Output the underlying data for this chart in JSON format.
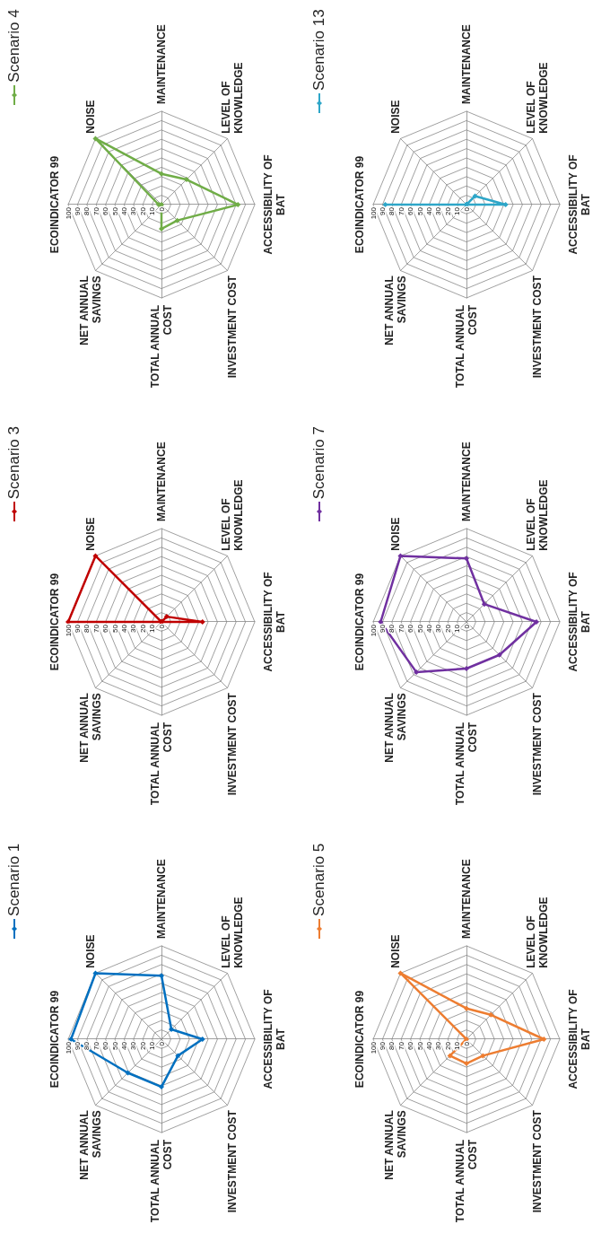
{
  "chart_data": [
    {
      "type": "radar",
      "categories": [
        "ECOINDICATOR 99",
        "NOISE",
        "MAINTENANCE",
        "LEVEL OF KNOWLEDGE",
        "ACCESSIBILITY OF BAT",
        "INVESTMENT COST",
        "TOTAL ANNUAL COST",
        "NET ANNUAL SAVINGS"
      ],
      "ylim": [
        0,
        100
      ],
      "yticks": [
        0,
        10,
        20,
        30,
        40,
        50,
        60,
        70,
        80,
        90,
        100
      ],
      "legend": "top left",
      "marker": "diamond",
      "series": [
        {
          "name": "Scenario 1",
          "color": "#0070c0",
          "values": [
            97,
            100,
            68,
            15,
            44,
            25,
            51,
            51
          ]
        }
      ]
    },
    {
      "type": "radar",
      "categories": [
        "ECOINDICATOR 99",
        "NOISE",
        "MAINTENANCE",
        "LEVEL OF KNOWLEDGE",
        "ACCESSIBILITY OF BAT",
        "INVESTMENT COST",
        "TOTAL ANNUAL COST",
        "NET ANNUAL SAVINGS"
      ],
      "ylim": [
        0,
        100
      ],
      "yticks": [
        0,
        10,
        20,
        30,
        40,
        50,
        60,
        70,
        80,
        90,
        100
      ],
      "legend": "top left",
      "marker": "diamond",
      "series": [
        {
          "name": "Scenario 3",
          "color": "#c00000",
          "values": [
            100,
            100,
            0,
            8,
            44,
            0,
            0,
            0
          ]
        }
      ]
    },
    {
      "type": "radar",
      "categories": [
        "ECOINDICATOR 99",
        "NOISE",
        "MAINTENANCE",
        "LEVEL OF KNOWLEDGE",
        "ACCESSIBILITY OF BAT",
        "INVESTMENT COST",
        "TOTAL ANNUAL COST",
        "NET ANNUAL SAVINGS"
      ],
      "ylim": [
        0,
        100
      ],
      "yticks": [
        0,
        10,
        20,
        30,
        40,
        50,
        60,
        70,
        80,
        90,
        100
      ],
      "legend": "top left",
      "marker": "diamond",
      "series": [
        {
          "name": "Scenario 4",
          "color": "#70ad47",
          "values": [
            3,
            100,
            33,
            38,
            82,
            24,
            26,
            0
          ]
        }
      ]
    },
    {
      "type": "radar",
      "categories": [
        "ECOINDICATOR 99",
        "NOISE",
        "MAINTENANCE",
        "LEVEL OF KNOWLEDGE",
        "ACCESSIBILITY OF BAT",
        "INVESTMENT COST",
        "TOTAL ANNUAL COST",
        "NET ANNUAL SAVINGS"
      ],
      "ylim": [
        0,
        100
      ],
      "yticks": [
        0,
        10,
        20,
        30,
        40,
        50,
        60,
        70,
        80,
        90,
        100
      ],
      "legend": "top left",
      "marker": "diamond",
      "series": [
        {
          "name": "Scenario 5",
          "color": "#ed7d31",
          "values": [
            0,
            100,
            33,
            37,
            83,
            25,
            26,
            25
          ]
        }
      ]
    },
    {
      "type": "radar",
      "categories": [
        "ECOINDICATOR 99",
        "NOISE",
        "MAINTENANCE",
        "LEVEL OF KNOWLEDGE",
        "ACCESSIBILITY OF BAT",
        "INVESTMENT COST",
        "TOTAL ANNUAL COST",
        "NET ANNUAL SAVINGS"
      ],
      "ylim": [
        0,
        100
      ],
      "yticks": [
        0,
        10,
        20,
        30,
        40,
        50,
        60,
        70,
        80,
        90,
        100
      ],
      "legend": "top left",
      "marker": "diamond",
      "series": [
        {
          "name": "Scenario 7",
          "color": "#7030a0",
          "values": [
            92,
            100,
            68,
            27,
            75,
            50,
            50,
            76
          ]
        }
      ]
    },
    {
      "type": "radar",
      "categories": [
        "ECOINDICATOR 99",
        "NOISE",
        "MAINTENANCE",
        "LEVEL OF KNOWLEDGE",
        "ACCESSIBILITY OF BAT",
        "INVESTMENT COST",
        "TOTAL ANNUAL COST",
        "NET ANNUAL SAVINGS"
      ],
      "ylim": [
        0,
        100
      ],
      "yticks": [
        0,
        10,
        20,
        30,
        40,
        50,
        60,
        70,
        80,
        90,
        100
      ],
      "legend": "top left",
      "marker": "diamond",
      "series": [
        {
          "name": "Scenario 13",
          "color": "#2ea6c8",
          "values": [
            87,
            0,
            0,
            13,
            42,
            0,
            0,
            0
          ]
        }
      ]
    }
  ]
}
